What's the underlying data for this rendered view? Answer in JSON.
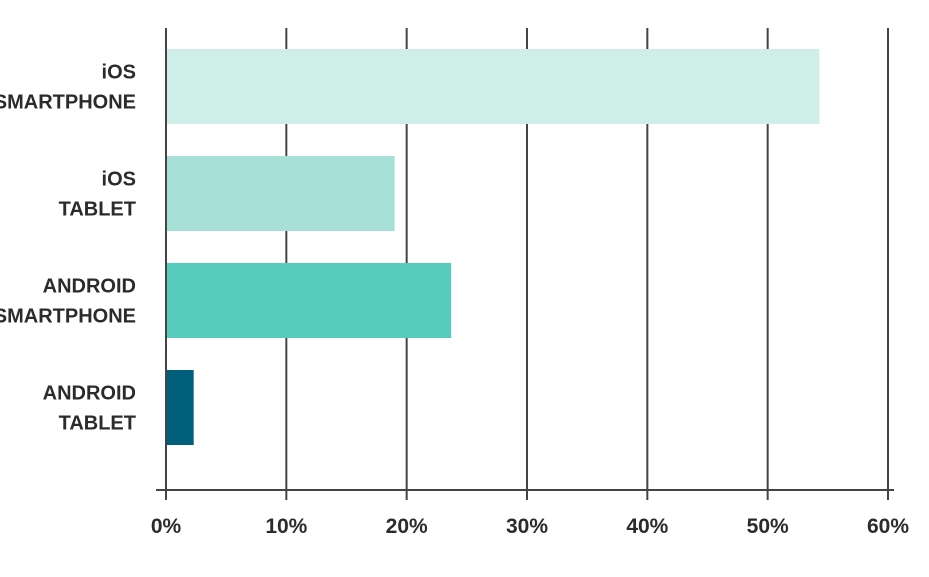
{
  "chart_data": {
    "type": "bar",
    "orientation": "horizontal",
    "title": "",
    "xlabel": "",
    "ylabel": "",
    "categories": [
      [
        "iOS",
        "SMARTPHONE"
      ],
      [
        "iOS",
        "TABLET"
      ],
      [
        "ANDROID",
        "SMARTPHONE"
      ],
      [
        "ANDROID",
        "TABLET"
      ]
    ],
    "values": [
      54.3,
      19,
      23.7,
      2.3
    ],
    "colors": [
      "#cfeee8",
      "#a6e0d7",
      "#56cbbe",
      "#005f7a"
    ],
    "xlim": [
      0,
      60
    ],
    "xticks": [
      0,
      10,
      20,
      30,
      40,
      50,
      60
    ],
    "xtick_labels": [
      "0%",
      "10%",
      "20%",
      "30%",
      "40%",
      "50%",
      "60%"
    ],
    "grid": "vertical",
    "gridline_color": "#444444",
    "legend": "none"
  }
}
